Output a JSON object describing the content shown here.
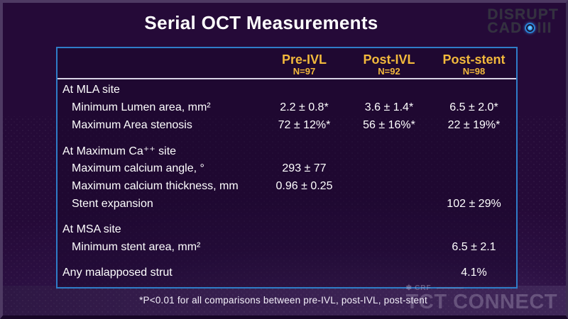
{
  "slide": {
    "title": "Serial OCT Measurements",
    "footnote": "*P<0.01 for all comparisons between pre-IVL, post-IVL, post-stent",
    "colors": {
      "background_purple": "#250A38",
      "table_border_blue": "#2F7DC8",
      "header_gold": "#F2B93C",
      "body_text": "#FFFFFF",
      "logo_blue": "#2196F3"
    }
  },
  "logo": {
    "line1": "DISRUPT",
    "line2_left": "CAD",
    "line2_right": "III",
    "icon_name": "oct-lens-icon"
  },
  "watermark": {
    "crf_label": "CRF",
    "brand": "TCT CONNECT"
  },
  "table": {
    "columns": [
      {
        "label": "Pre-IVL",
        "n": "N=97"
      },
      {
        "label": "Post-IVL",
        "n": "N=92"
      },
      {
        "label": "Post-stent",
        "n": "N=98"
      }
    ],
    "rows": [
      {
        "type": "section",
        "label": "At MLA site"
      },
      {
        "type": "data",
        "label": "Minimum Lumen area, mm²",
        "values": [
          "2.2 ± 0.8*",
          "3.6 ± 1.4*",
          "6.5 ± 2.0*"
        ]
      },
      {
        "type": "data",
        "label": "Maximum Area stenosis",
        "values": [
          "72 ± 12%*",
          "56 ± 16%*",
          "22 ± 19%*"
        ]
      },
      {
        "type": "spacer"
      },
      {
        "type": "section",
        "label": "At Maximum Ca⁺⁺ site"
      },
      {
        "type": "data",
        "label": "Maximum calcium angle, °",
        "values": [
          "293 ± 77",
          "",
          ""
        ]
      },
      {
        "type": "data",
        "label": "Maximum calcium thickness, mm",
        "values": [
          "0.96 ± 0.25",
          "",
          ""
        ]
      },
      {
        "type": "data",
        "label": "Stent expansion",
        "values": [
          "",
          "",
          "102 ± 29%"
        ]
      },
      {
        "type": "spacer"
      },
      {
        "type": "section",
        "label": "At MSA site"
      },
      {
        "type": "data",
        "label": "Minimum stent area, mm²",
        "values": [
          "",
          "",
          "6.5 ± 2.1"
        ]
      },
      {
        "type": "spacer"
      },
      {
        "type": "data",
        "flush": true,
        "label": "Any malapposed strut",
        "values": [
          "",
          "",
          "4.1%"
        ]
      }
    ]
  },
  "chart_data": {
    "type": "table",
    "title": "Serial OCT Measurements",
    "columns": [
      "Pre-IVL (N=97)",
      "Post-IVL (N=92)",
      "Post-stent (N=98)"
    ],
    "rows": [
      {
        "section": "At MLA site",
        "metric": "Minimum Lumen area, mm2",
        "values": [
          "2.2 ± 0.8",
          "3.6 ± 1.4",
          "6.5 ± 2.0"
        ],
        "significant": true
      },
      {
        "section": "At MLA site",
        "metric": "Maximum Area stenosis",
        "values": [
          "72 ± 12%",
          "56 ± 16%",
          "22 ± 19%"
        ],
        "significant": true
      },
      {
        "section": "At Maximum Ca++ site",
        "metric": "Maximum calcium angle, deg",
        "values": [
          "293 ± 77",
          null,
          null
        ]
      },
      {
        "section": "At Maximum Ca++ site",
        "metric": "Maximum calcium thickness, mm",
        "values": [
          "0.96 ± 0.25",
          null,
          null
        ]
      },
      {
        "section": "At Maximum Ca++ site",
        "metric": "Stent expansion",
        "values": [
          null,
          null,
          "102 ± 29%"
        ]
      },
      {
        "section": "At MSA site",
        "metric": "Minimum stent area, mm2",
        "values": [
          null,
          null,
          "6.5 ± 2.1"
        ]
      },
      {
        "section": "",
        "metric": "Any malapposed strut",
        "values": [
          null,
          null,
          "4.1%"
        ]
      }
    ],
    "footnote": "*P<0.01 for all comparisons between pre-IVL, post-IVL, post-stent"
  }
}
